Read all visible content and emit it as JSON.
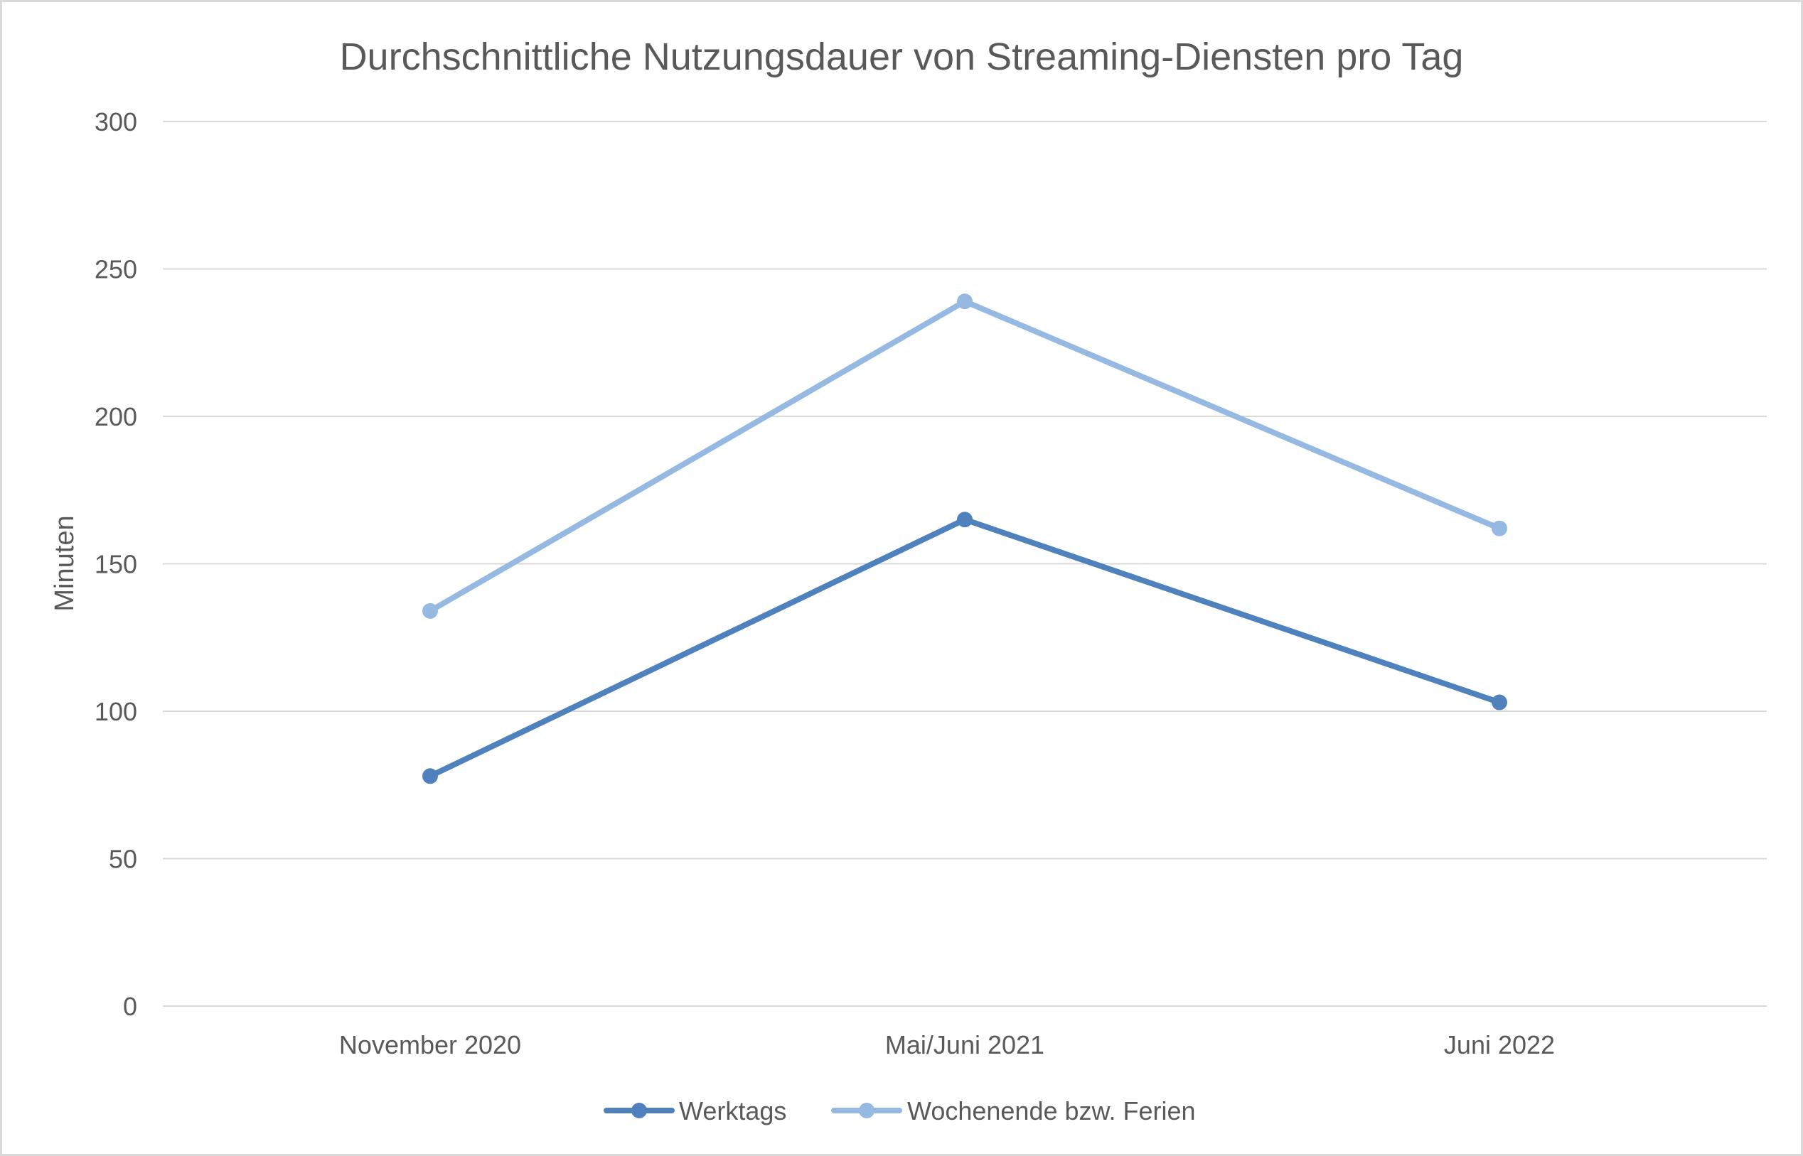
{
  "chart_data": {
    "type": "line",
    "title": "Durchschnittliche Nutzungsdauer von Streaming-Diensten pro Tag",
    "xlabel": "",
    "ylabel": "Minuten",
    "categories": [
      "November 2020",
      "Mai/Juni 2021",
      "Juni 2022"
    ],
    "series": [
      {
        "name": "Werktags",
        "values": [
          78,
          165,
          103
        ],
        "color": "#4f81bd"
      },
      {
        "name": "Wochenende bzw. Ferien",
        "values": [
          134,
          239,
          162
        ],
        "color": "#95b9e0"
      }
    ],
    "ylim": [
      0,
      300
    ],
    "yticks": [
      0,
      50,
      100,
      150,
      200,
      250,
      300
    ],
    "grid": true,
    "legend": "bottom"
  }
}
